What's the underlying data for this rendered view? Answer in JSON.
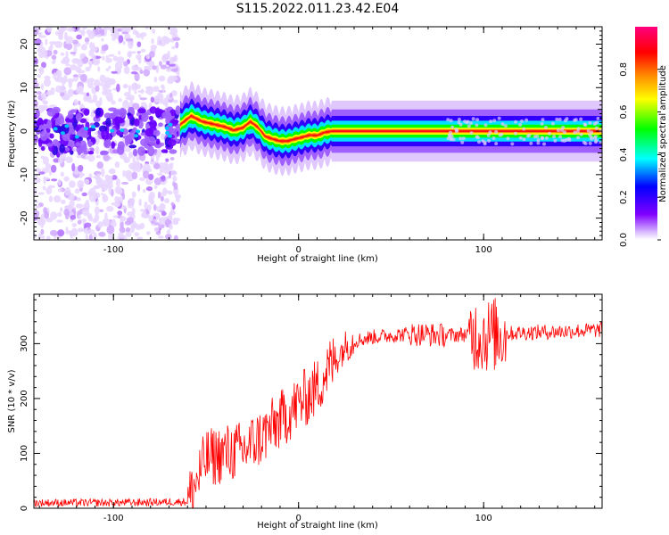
{
  "title": "S115.2022.011.23.42.E04",
  "chart_data": [
    {
      "type": "heatmap",
      "xlabel": "Height of straight line (km)",
      "ylabel": "Frequency (Hz)",
      "xlim": [
        -143,
        164
      ],
      "ylim": [
        -25,
        24
      ],
      "x_ticks": [
        -100,
        0,
        100
      ],
      "y_ticks": [
        -20,
        -10,
        0,
        10,
        20
      ],
      "colorbar": {
        "label": "Normalized spectral amplitude",
        "range": [
          0,
          1
        ],
        "ticks": [
          0.0,
          0.2,
          0.4,
          0.6,
          0.8
        ],
        "colormap": [
          "#ffffff",
          "#8000ff",
          "#0000ff",
          "#00ffff",
          "#00ff00",
          "#ffff00",
          "#ff8000",
          "#ff0000",
          "#ff0080"
        ]
      },
      "ridge_frequency_hz": {
        "x": [
          -64,
          -58,
          -52,
          -46,
          -40,
          -35,
          -30,
          -26,
          -22,
          -18,
          -14,
          -10,
          -6,
          -2,
          2,
          6,
          10,
          14,
          18,
          164
        ],
        "values": [
          1.5,
          3.5,
          2.2,
          1.6,
          1.0,
          0.2,
          0.8,
          2.2,
          0.9,
          -1.2,
          -1.8,
          -2.3,
          -2.3,
          -1.8,
          -1.4,
          -0.9,
          -1.0,
          -0.3,
          0,
          0
        ]
      },
      "noise_region_km": [
        -143,
        -65
      ],
      "grid": false
    },
    {
      "type": "line",
      "xlabel": "Height of straight line (km)",
      "ylabel": "SNR (10 * v/v)",
      "xlim": [
        -143,
        164
      ],
      "ylim": [
        0,
        390
      ],
      "x_ticks": [
        -100,
        0,
        100
      ],
      "y_ticks": [
        0,
        100,
        200,
        300
      ],
      "series_color": "#ff0000",
      "series": [
        {
          "x": [
            -143,
            -100,
            -60,
            -55,
            -50,
            -45,
            -40,
            -30,
            -20,
            -10,
            0,
            10,
            15,
            20,
            25,
            30,
            40,
            60,
            80,
            95,
            100,
            110,
            120,
            140,
            164
          ],
          "values": [
            10,
            10,
            12,
            50,
            90,
            95,
            100,
            105,
            130,
            160,
            190,
            220,
            250,
            270,
            295,
            305,
            312,
            318,
            315,
            318,
            315,
            318,
            320,
            322,
            325
          ]
        }
      ],
      "grid": false
    }
  ]
}
